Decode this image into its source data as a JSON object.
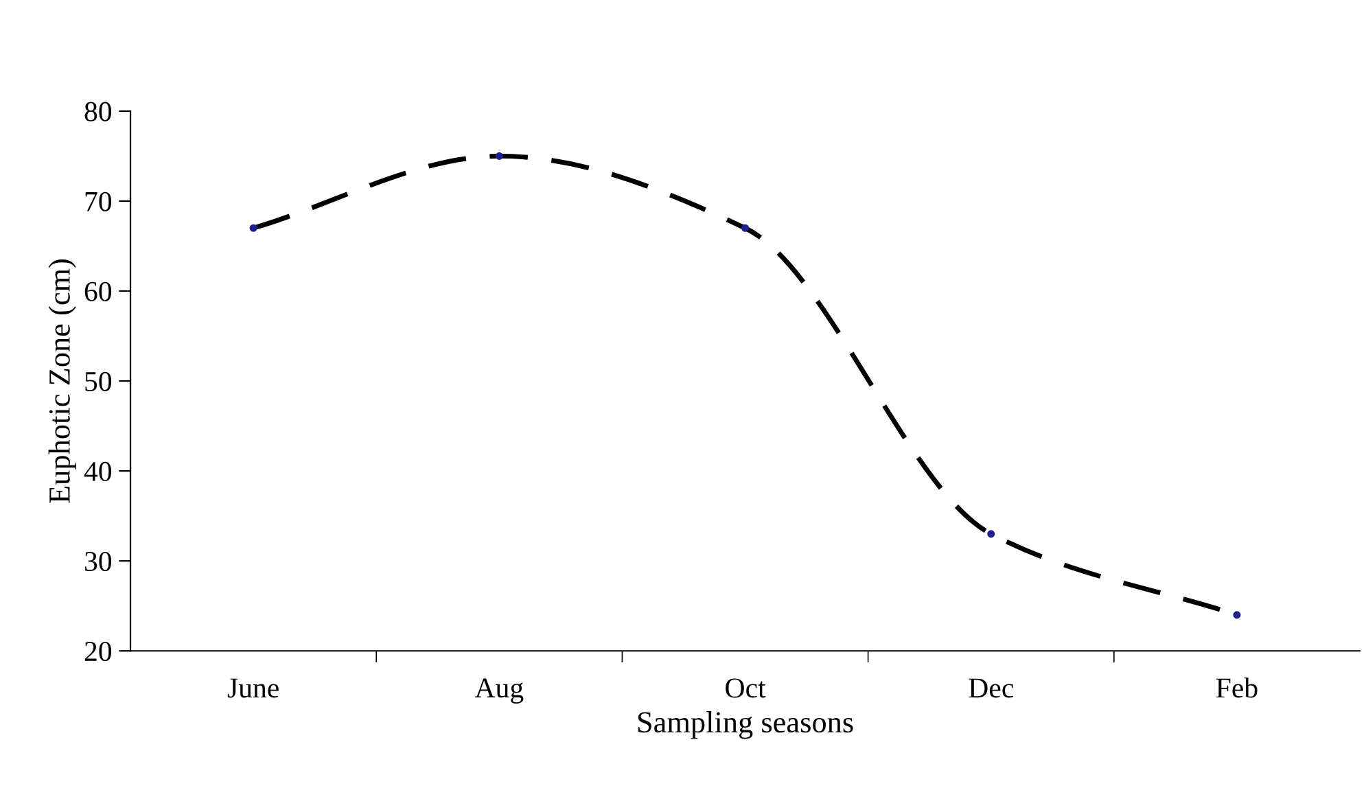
{
  "chart_data": {
    "type": "line",
    "xlabel": "Sampling seasons",
    "ylabel": "Euphotic Zone (cm)",
    "categories": [
      "June",
      "Aug",
      "Oct",
      "Dec",
      "Feb"
    ],
    "series": [
      {
        "color": "#000000",
        "values": [
          67,
          75,
          67,
          33,
          24
        ]
      }
    ],
    "ylim": [
      20,
      80
    ],
    "yticks": [
      20,
      30,
      40,
      50,
      60,
      70,
      80
    ],
    "grid": false,
    "legend": false,
    "marker": "circle",
    "line_style": "dashed"
  }
}
